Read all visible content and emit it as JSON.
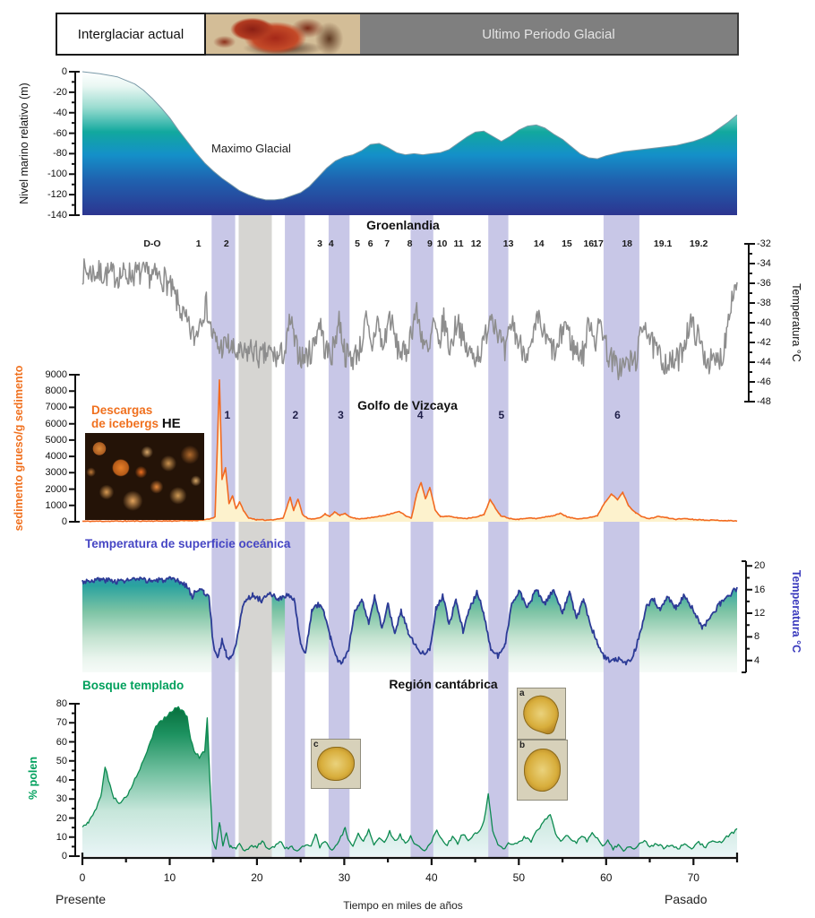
{
  "header": {
    "left": "Interglaciar actual",
    "right": "Ultimo Periodo Glacial"
  },
  "colors": {
    "band": "#c8c7e7",
    "lgm_band": "#d6d5d2",
    "sea_line": "#7a9aa8",
    "greenland_line": "#8d8d8d",
    "ird_line": "#f26a21",
    "ird_fill": "#fdf2cd",
    "sst_line": "#2c3b96",
    "pollen_line": "#0c8a50",
    "orange_label": "#f0701e",
    "blue_label": "#4646c4",
    "green_label": "#00a05c",
    "header_gray": "#7f7f7f"
  },
  "chart_data": {
    "type": "line",
    "x_axis": {
      "label": "Tiempo en miles de años",
      "left_label": "Presente",
      "right_label": "Pasado",
      "range": [
        0,
        75
      ],
      "ticks": [
        0,
        10,
        20,
        30,
        40,
        50,
        60,
        70
      ],
      "minor_step": 5
    },
    "bands": {
      "heinrich": [
        {
          "from": 14.8,
          "to": 17.5
        },
        {
          "from": 23.2,
          "to": 25.5
        },
        {
          "from": 28.2,
          "to": 30.6
        },
        {
          "from": 37.6,
          "to": 40.2
        },
        {
          "from": 46.5,
          "to": 48.8
        },
        {
          "from": 59.7,
          "to": 63.8
        }
      ],
      "lgm": {
        "from": 17.9,
        "to": 21.7
      }
    },
    "panels": [
      {
        "id": "sea_level",
        "label": "Maximo Glacial",
        "ylabel": "Nivel marino relativo (m)",
        "ylim": [
          -140,
          0
        ],
        "yticks": [
          0,
          -20,
          -40,
          -60,
          -80,
          -100,
          -120,
          -140
        ],
        "minor_step": 10,
        "anchors": [
          0,
          0,
          2,
          -2,
          4,
          -5,
          6,
          -12,
          7,
          -18,
          8,
          -26,
          9,
          -35,
          10,
          -45,
          11,
          -57,
          12,
          -68,
          13,
          -79,
          14,
          -89,
          15,
          -97,
          16,
          -104,
          17,
          -110,
          18,
          -116,
          19,
          -120,
          20,
          -123,
          21,
          -125,
          22,
          -125,
          23,
          -124,
          24,
          -121,
          25,
          -118,
          26,
          -112,
          27,
          -103,
          28,
          -94,
          29,
          -87,
          30,
          -83,
          31,
          -81,
          32,
          -77,
          33,
          -71,
          34,
          -70,
          35,
          -74,
          36,
          -79,
          37,
          -81,
          38,
          -80,
          39,
          -81,
          40,
          -80,
          41,
          -79,
          42,
          -76,
          43,
          -70,
          44,
          -64,
          45,
          -59,
          46,
          -58,
          47,
          -63,
          48,
          -68,
          49,
          -63,
          50,
          -57,
          51,
          -53,
          52,
          -52,
          53,
          -55,
          54,
          -61,
          55,
          -66,
          56,
          -73,
          57,
          -80,
          58,
          -84,
          59,
          -85,
          60,
          -82,
          62,
          -78,
          64,
          -76,
          66,
          -74,
          68,
          -72,
          70,
          -68,
          71,
          -65,
          72,
          -61,
          73,
          -55,
          74,
          -49,
          75,
          -42
        ]
      },
      {
        "id": "greenland",
        "title": "Groenlandia",
        "ylabel": "Temperatura °C",
        "ylim": [
          -48,
          -32
        ],
        "yticks": [
          -32,
          -34,
          -36,
          -38,
          -40,
          -42,
          -44,
          -46,
          -48
        ],
        "minor_step": 1,
        "noise": {
          "amp": 1.35,
          "step": 0.1,
          "seed": 7
        },
        "do_events": [
          {
            "t": 8,
            "label": "D-O"
          },
          {
            "t": 13.3,
            "label": "1"
          },
          {
            "t": 16.5,
            "label": "2"
          },
          {
            "t": 27.2,
            "label": "3"
          },
          {
            "t": 28.5,
            "label": "4"
          },
          {
            "t": 31.5,
            "label": "5"
          },
          {
            "t": 33,
            "label": "6"
          },
          {
            "t": 34.9,
            "label": "7"
          },
          {
            "t": 37.5,
            "label": "8"
          },
          {
            "t": 39.8,
            "label": "9"
          },
          {
            "t": 41.2,
            "label": "10"
          },
          {
            "t": 43.1,
            "label": "11"
          },
          {
            "t": 45.1,
            "label": "12"
          },
          {
            "t": 48.8,
            "label": "13"
          },
          {
            "t": 52.3,
            "label": "14"
          },
          {
            "t": 55.5,
            "label": "15"
          },
          {
            "t": 58,
            "label": "16"
          },
          {
            "t": 59.1,
            "label": "17"
          },
          {
            "t": 62.4,
            "label": "18"
          },
          {
            "t": 66.5,
            "label": "19.1"
          },
          {
            "t": 70.6,
            "label": "19.2"
          }
        ],
        "anchors": [
          0,
          -34.8,
          2,
          -35,
          4,
          -35.2,
          6,
          -35,
          8,
          -35.2,
          9.5,
          -35.6,
          10.5,
          -37.2,
          11.5,
          -39.2,
          12.3,
          -40.8,
          12.9,
          -41.6,
          13.6,
          -39.2,
          14.2,
          -38.2,
          14.8,
          -41,
          15.6,
          -42.6,
          16.6,
          -42.2,
          17.4,
          -43,
          18.4,
          -43.4,
          19.4,
          -42.6,
          20.4,
          -43.6,
          21.4,
          -43,
          22.4,
          -43.6,
          23.3,
          -42.8,
          23.8,
          -39.6,
          24.4,
          -42.4,
          25.2,
          -43.6,
          26.2,
          -43,
          27.2,
          -39.8,
          27.8,
          -42.8,
          28.6,
          -43.2,
          29.4,
          -39.6,
          30.1,
          -43.2,
          31,
          -43.6,
          31.9,
          -42.4,
          32.5,
          -39.8,
          33.1,
          -42.8,
          33.8,
          -39.6,
          34.4,
          -42.8,
          35.2,
          -39.2,
          36,
          -42.4,
          37,
          -43.4,
          38.2,
          -38.8,
          39,
          -41.6,
          39.7,
          -43.4,
          40.2,
          -39.8,
          40.8,
          -42.6,
          41.4,
          -39.6,
          42.1,
          -42.8,
          43,
          -39.4,
          43.8,
          -42.6,
          44.8,
          -43.4,
          45.8,
          -42.8,
          46.8,
          -38.8,
          47.6,
          -40.8,
          48.4,
          -43.4,
          49.2,
          -39.8,
          50,
          -42.2,
          51.3,
          -43.2,
          52.2,
          -39.6,
          53,
          -41.6,
          54.3,
          -43.2,
          55.3,
          -39.8,
          56.2,
          -42.6,
          57.4,
          -43.2,
          58.1,
          -39.6,
          58.8,
          -41.8,
          59.4,
          -39.8,
          60.2,
          -43.2,
          61.3,
          -44.6,
          62.4,
          -44.2,
          63.4,
          -43.8,
          64.4,
          -39.6,
          65.2,
          -42.2,
          66.4,
          -43.8,
          67.4,
          -44.2,
          68.4,
          -43.6,
          69.6,
          -40,
          70.4,
          -41.2,
          71.4,
          -43.6,
          72.4,
          -44.2,
          73.4,
          -43.2,
          74.2,
          -38,
          75,
          -35.8
        ]
      },
      {
        "id": "ird",
        "title": "Golfo de Vizcaya",
        "label_line1": "Descargas",
        "label_line2": "de icebergs",
        "he_label": "HE",
        "ylabel": "sedimento grueso/g sedimento",
        "ylim": [
          0,
          9000
        ],
        "yticks": [
          9000,
          8000,
          7000,
          6000,
          5000,
          4000,
          3000,
          2000,
          1000,
          0
        ],
        "noise": {
          "amp": 25,
          "step": 0.15,
          "seed": 11
        },
        "he_events": [
          {
            "t": 16.6,
            "label": "1"
          },
          {
            "t": 24.4,
            "label": "2"
          },
          {
            "t": 29.6,
            "label": "3"
          },
          {
            "t": 38.7,
            "label": "4"
          },
          {
            "t": 48,
            "label": "5"
          },
          {
            "t": 61.3,
            "label": "6"
          }
        ],
        "anchors": [
          0,
          30,
          5,
          40,
          10,
          50,
          13,
          80,
          14.5,
          150,
          15.2,
          300,
          15.7,
          8700,
          16,
          2600,
          16.4,
          3300,
          16.8,
          1100,
          17.2,
          1600,
          17.6,
          800,
          18,
          1200,
          18.5,
          650,
          19,
          250,
          20,
          120,
          21,
          100,
          22,
          140,
          23,
          220,
          23.8,
          1500,
          24.2,
          700,
          24.7,
          1400,
          25.2,
          450,
          25.8,
          220,
          26.5,
          160,
          27.3,
          260,
          27.8,
          500,
          28.3,
          300,
          28.9,
          600,
          29.5,
          380,
          30.1,
          520,
          30.7,
          280,
          31.5,
          180,
          33,
          240,
          34.5,
          380,
          35.5,
          520,
          36.3,
          620,
          37,
          380,
          37.7,
          220,
          38.3,
          1700,
          38.8,
          2400,
          39.3,
          1400,
          39.8,
          2100,
          40.4,
          750,
          41,
          320,
          42,
          330,
          43,
          240,
          44,
          200,
          45,
          290,
          46,
          430,
          46.7,
          1350,
          47.3,
          850,
          47.9,
          380,
          49,
          200,
          50,
          150,
          51,
          240,
          52,
          190,
          53,
          290,
          54,
          380,
          54.8,
          520,
          55.6,
          280,
          56.6,
          190,
          58,
          240,
          59,
          380,
          59.8,
          1150,
          60.6,
          1700,
          61.3,
          1350,
          61.9,
          1800,
          62.6,
          950,
          63.4,
          550,
          64.2,
          280,
          65,
          190,
          66,
          330,
          67,
          240,
          68,
          150,
          69,
          200,
          70,
          140,
          72,
          100,
          74,
          70,
          75,
          50
        ]
      },
      {
        "id": "sst",
        "label": "Temperatura de superficie oceánica",
        "ylabel": "Temperatura °C",
        "ylim": [
          2,
          20.8
        ],
        "yticks": [
          20,
          16,
          12,
          8,
          4
        ],
        "minor_step": 2,
        "noise": {
          "amp": 0.45,
          "step": 0.12,
          "seed": 3
        },
        "anchors": [
          0,
          17.4,
          2,
          17.7,
          4,
          17.4,
          6,
          17.7,
          8,
          17.5,
          10,
          17.7,
          11,
          17.4,
          12,
          16.6,
          12.6,
          14.8,
          13.2,
          16.2,
          13.9,
          15.6,
          14.5,
          14.8,
          15,
          6.5,
          15.5,
          4.5,
          16,
          7.5,
          16.5,
          5,
          17,
          4.2,
          17.6,
          7,
          18.2,
          12,
          18.8,
          14.5,
          19.5,
          15,
          20.5,
          14.2,
          21.5,
          15.2,
          22.5,
          14.4,
          23.5,
          15,
          24.3,
          14.2,
          25,
          6.5,
          25.6,
          5.5,
          26.3,
          12.5,
          27,
          13.5,
          27.7,
          12.2,
          28.4,
          8,
          29,
          4.5,
          29.8,
          3.6,
          30.5,
          6,
          31.2,
          12.5,
          32,
          14.5,
          32.8,
          10,
          33.5,
          14.8,
          34.3,
          9.5,
          35,
          13.5,
          35.8,
          8.5,
          36.5,
          12.5,
          37.3,
          9,
          38.2,
          6.5,
          39,
          5.2,
          39.8,
          6,
          40.5,
          12.8,
          41.3,
          15,
          42,
          10,
          42.8,
          14.2,
          43.6,
          9,
          44.4,
          13,
          45.2,
          15.5,
          46,
          12,
          46.8,
          5.8,
          47.6,
          4.8,
          48.4,
          6.5,
          49.2,
          13.5,
          50,
          15.8,
          51,
          13,
          52,
          16,
          53,
          13.5,
          54,
          16.2,
          55,
          12,
          55.8,
          15.5,
          56.6,
          11,
          57.4,
          14.5,
          58.2,
          10,
          59,
          7,
          59.8,
          4.5,
          60.6,
          3.8,
          61.4,
          4.2,
          62.2,
          3.6,
          63,
          4.5,
          63.8,
          8,
          64.6,
          13,
          65.4,
          14.5,
          66.2,
          12.5,
          67,
          14.8,
          68,
          13,
          69,
          15,
          70,
          12.5,
          71,
          9.5,
          72,
          11.5,
          73,
          13.5,
          74,
          15,
          75,
          16.2
        ]
      },
      {
        "id": "pollen",
        "label": "Bosque templado",
        "title": "Región cantábrica",
        "ylabel": "% polen",
        "ylim": [
          0,
          80
        ],
        "yticks": [
          80,
          70,
          60,
          50,
          40,
          30,
          20,
          10,
          0
        ],
        "minor_step": 5,
        "noise": {
          "amp": 0.8,
          "step": 0.2,
          "seed": 5
        },
        "images": [
          {
            "label": "c"
          },
          {
            "label": "a"
          },
          {
            "label": "b"
          }
        ],
        "anchors": [
          0,
          15,
          0.7,
          18,
          1.4,
          23,
          2.1,
          31,
          2.6,
          47,
          3.1,
          38,
          3.6,
          31,
          4.2,
          28,
          4.8,
          30,
          5.4,
          34,
          6,
          40,
          6.6,
          46,
          7.2,
          52,
          7.8,
          60,
          8.4,
          68,
          9,
          71,
          9.6,
          73,
          10.2,
          76,
          10.8,
          78,
          11.4,
          77,
          12,
          73,
          12.4,
          62,
          12.8,
          55,
          13.4,
          52,
          14,
          55,
          14.3,
          72,
          14.6,
          40,
          14.9,
          8,
          15.3,
          4,
          15.7,
          18,
          16.1,
          6,
          16.5,
          12,
          16.9,
          5,
          17.5,
          4,
          18,
          6,
          18.6,
          3,
          19.2,
          5,
          20,
          5,
          20.6,
          8,
          21.2,
          4,
          22,
          5,
          22.6,
          8,
          23.2,
          4,
          24,
          5,
          24.6,
          3,
          25.4,
          5,
          26.2,
          6,
          26.7,
          12,
          27.2,
          5,
          27.8,
          8,
          28.4,
          3,
          29,
          5,
          29.6,
          10,
          30.1,
          15,
          30.5,
          8,
          31,
          5,
          31.6,
          12,
          32.2,
          8,
          32.8,
          14,
          33.4,
          6,
          34,
          10,
          34.6,
          7,
          35.2,
          13,
          35.8,
          8,
          36.4,
          11,
          37,
          7,
          37.6,
          10,
          38.2,
          6,
          38.8,
          4,
          39.4,
          3,
          40,
          8,
          40.6,
          14,
          41.2,
          8,
          41.8,
          6,
          42.4,
          10,
          43,
          7,
          43.6,
          12,
          44.2,
          8,
          44.8,
          11,
          45.4,
          13,
          46,
          18,
          46.5,
          32,
          47,
          14,
          47.6,
          6,
          48.2,
          4,
          49,
          7,
          49.8,
          6,
          50.6,
          10,
          51.4,
          8,
          52.2,
          14,
          53,
          19,
          53.6,
          22,
          54.2,
          12,
          54.8,
          8,
          55.4,
          11,
          56,
          9,
          56.6,
          7,
          57.2,
          11,
          57.8,
          8,
          58.4,
          12,
          59,
          9,
          59.6,
          6,
          60.2,
          8,
          60.8,
          4,
          61.4,
          6,
          62,
          3,
          62.6,
          5,
          63.2,
          4,
          63.8,
          6,
          64.4,
          8,
          65,
          5,
          65.8,
          7,
          66.6,
          4,
          67.4,
          6,
          68.2,
          4,
          69,
          6,
          69.8,
          4,
          70.6,
          7,
          71.4,
          5,
          72.2,
          8,
          73,
          7,
          73.8,
          10,
          74.4,
          12,
          75,
          14
        ]
      }
    ]
  }
}
